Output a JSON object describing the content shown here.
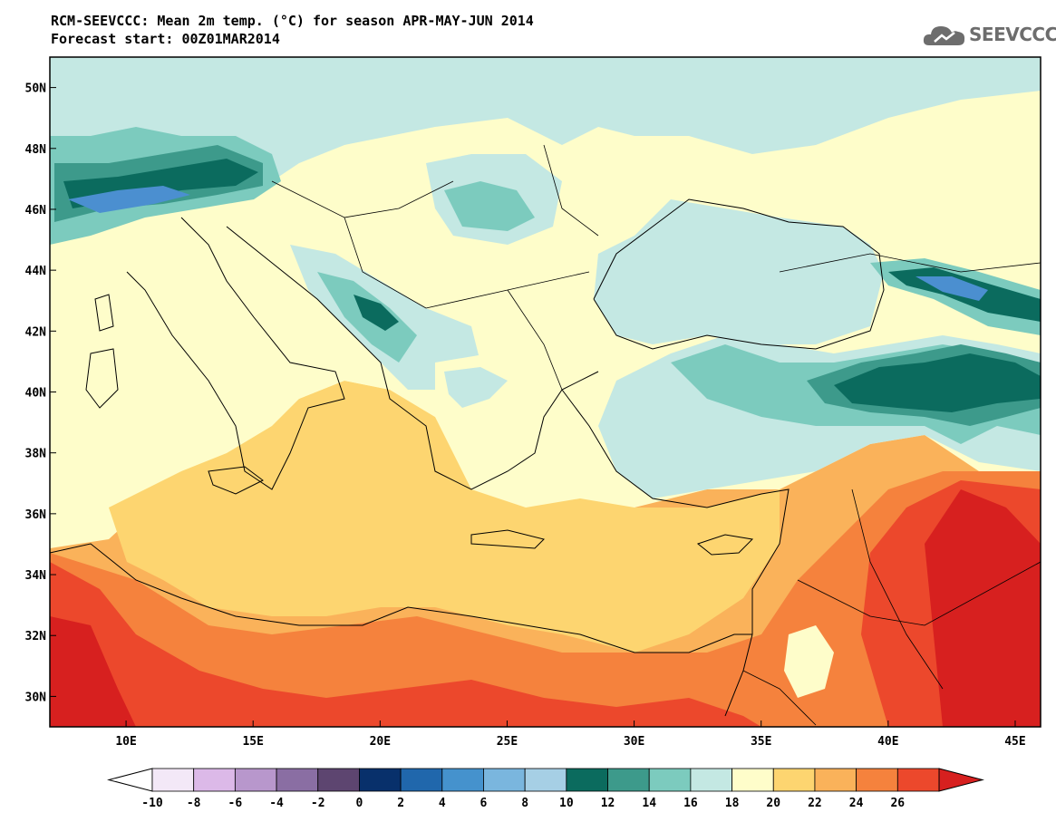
{
  "header": {
    "title_line1": "RCM-SEEVCCC: Mean 2m temp. (°C) for season APR-MAY-JUN 2014",
    "title_line2": "Forecast start: 00Z01MAR2014"
  },
  "logo": {
    "text": "SEEVCCC",
    "icon": "cloud-icon"
  },
  "map": {
    "variable": "Mean 2m temp. (°C)",
    "lon_range": [
      7,
      46
    ],
    "lat_range": [
      29,
      51
    ],
    "lat_ticks": [
      "30N",
      "32N",
      "34N",
      "36N",
      "38N",
      "40N",
      "42N",
      "44N",
      "46N",
      "48N",
      "50N"
    ],
    "lon_ticks": [
      "10E",
      "15E",
      "20E",
      "25E",
      "30E",
      "35E",
      "40E",
      "45E"
    ],
    "colors": {
      "t14_16": "#c4e8e3",
      "t16_18": "#fefdca",
      "t18_20": "#fdd570",
      "t20_22": "#fab25a",
      "t22_24": "#f5823d",
      "t24_26": "#ec482c",
      "t26_plus": "#d7201f",
      "t12_14": "#7ccbbe",
      "t10_12": "#3d9a8b",
      "t8_10": "#0b6b5e",
      "t4_6": "#4b8fd0",
      "t2_4": "#2367ad"
    }
  },
  "colorbar": {
    "labels": [
      "-10",
      "-8",
      "-6",
      "-4",
      "-2",
      "0",
      "2",
      "4",
      "6",
      "8",
      "10",
      "12",
      "14",
      "16",
      "18",
      "20",
      "22",
      "24",
      "26"
    ],
    "colors": [
      "#f3e8f7",
      "#dcb9e8",
      "#b897cc",
      "#8a6ea3",
      "#5d4570",
      "#08306b",
      "#2067ac",
      "#4592cd",
      "#7ab6de",
      "#a6cfe5",
      "#0b6b5e",
      "#3d9a8b",
      "#7ccbbe",
      "#c4e8e3",
      "#fefdca",
      "#fdd570",
      "#fab25a",
      "#f5823d",
      "#ec482c"
    ],
    "under_color": "#ffffff",
    "over_color": "#d7201f"
  }
}
